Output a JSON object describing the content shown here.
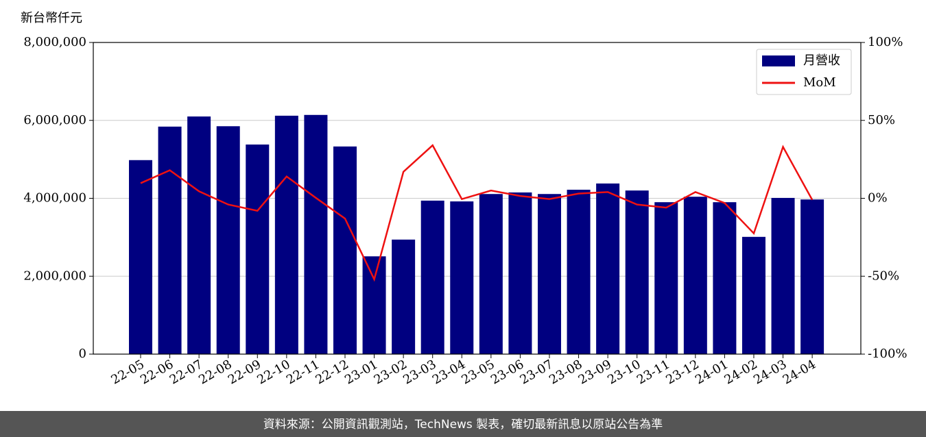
{
  "chart_data": {
    "type": "bar_line",
    "y_label": "新台幣仟元",
    "categories": [
      "22-05",
      "22-06",
      "22-07",
      "22-08",
      "22-09",
      "22-10",
      "22-11",
      "22-12",
      "23-01",
      "23-02",
      "23-03",
      "23-04",
      "23-05",
      "23-06",
      "23-07",
      "23-08",
      "23-09",
      "23-10",
      "23-11",
      "23-12",
      "24-01",
      "24-02",
      "24-03",
      "24-04"
    ],
    "series": [
      {
        "name": "月營收",
        "color": "#000080",
        "type": "bar",
        "values": [
          4980000,
          5840000,
          6100000,
          5850000,
          5380000,
          6120000,
          6140000,
          5330000,
          2510000,
          2940000,
          3940000,
          3920000,
          4110000,
          4150000,
          4110000,
          4220000,
          4380000,
          4200000,
          3900000,
          4040000,
          3900000,
          3010000,
          4010000,
          3970000
        ]
      },
      {
        "name": "MoM",
        "color": "#ee1111",
        "type": "line",
        "axis": "y2",
        "values": [
          9.7,
          18,
          4.5,
          -4,
          -8,
          14,
          0.3,
          -13,
          -52,
          17,
          34,
          -0.5,
          5,
          1.5,
          -0.5,
          3,
          4,
          -4,
          -6,
          4,
          -3,
          -22.5,
          33,
          -1
        ]
      }
    ],
    "ylim": [
      0,
      8000000
    ],
    "yticks": [
      0,
      {
        "value": 2000000,
        "label": "2,000,000"
      },
      {
        "value": 4000000,
        "label": "4,000,000"
      },
      {
        "value": 6000000,
        "label": "6,000,000"
      },
      {
        "value": 8000000,
        "label": "8,000,000"
      }
    ],
    "y2lim": [
      -100,
      100
    ],
    "y2ticks": [
      {
        "value": -100,
        "label": "-100%"
      },
      {
        "value": -50,
        "label": "-50%"
      },
      {
        "value": 0,
        "label": "0%"
      },
      {
        "value": 50,
        "label": "50%"
      },
      {
        "value": 100,
        "label": "100%"
      }
    ],
    "grid": true,
    "legend": "upper right",
    "footer": "資料來源：公開資訊觀測站，TechNews 製表，確切最新訊息以原站公告為準"
  }
}
